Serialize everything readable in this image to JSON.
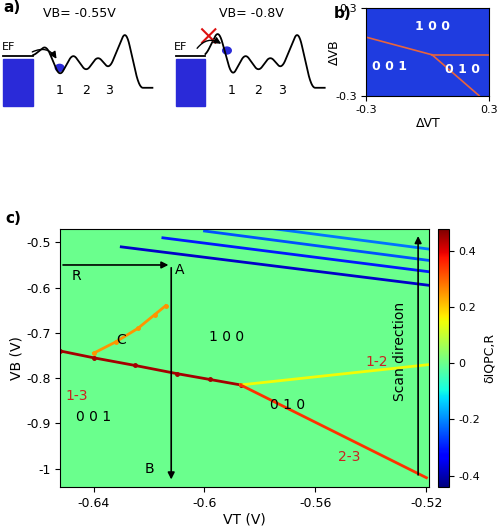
{
  "diagram_a": {
    "label": "a)",
    "panels": [
      {
        "gate": "VB= -0.55V",
        "fermi": "EF",
        "dots": [
          "1",
          "2",
          "3"
        ],
        "tunnel": true
      },
      {
        "gate": "VB= -0.8V",
        "fermi": "EF",
        "dots": [
          "1",
          "2",
          "3"
        ],
        "tunnel": false
      }
    ]
  },
  "chart_data": [
    {
      "type": "line",
      "panel_label": "b)",
      "xlabel": "ΔVT",
      "ylabel": "ΔVB",
      "xlim": [
        -0.3,
        0.3
      ],
      "ylim": [
        -0.3,
        0.3
      ],
      "xticks": [
        -0.3,
        0.3
      ],
      "yticks": [
        -0.3,
        0.3
      ],
      "color": "#1f3ce0",
      "series": [
        {
          "x": [
            0.02,
            -0.3
          ],
          "y": [
            -0.02,
            0.1
          ],
          "color": "#e8643c"
        },
        {
          "x": [
            0.02,
            0.3
          ],
          "y": [
            -0.02,
            -0.02
          ],
          "color": "#e8643c"
        },
        {
          "x": [
            0.02,
            0.25
          ],
          "y": [
            -0.02,
            -0.3
          ],
          "color": "#e8643c"
        }
      ],
      "labels": [
        {
          "text": "1 0 0",
          "x": 0.02,
          "y": 0.17
        },
        {
          "text": "0 0 1",
          "x": -0.19,
          "y": -0.1
        },
        {
          "text": "0 1 0",
          "x": 0.17,
          "y": -0.12
        }
      ]
    },
    {
      "type": "heatmap",
      "panel_label": "c)",
      "xlabel": "VT (V)",
      "ylabel": "VB (V)",
      "xlim": [
        -0.652,
        -0.519
      ],
      "ylim": [
        -1.04,
        -0.47
      ],
      "xticks": [
        -0.64,
        -0.6,
        -0.56,
        -0.52
      ],
      "yticks": [
        -0.5,
        -0.6,
        -0.7,
        -0.8,
        -0.9,
        -1
      ],
      "background_value": 0,
      "colorbar": {
        "label": "δIQPC,R",
        "lim": [
          -0.44,
          0.48
        ],
        "ticks": [
          -0.4,
          -0.2,
          0,
          0.2,
          0.4
        ]
      },
      "series": [
        {
          "x": [
            -0.652,
            -0.64,
            -0.625,
            -0.61,
            -0.598,
            -0.587
          ],
          "y": [
            -0.74,
            -0.755,
            -0.772,
            -0.79,
            -0.803,
            -0.815
          ],
          "value": 0.45,
          "marker": "o"
        },
        {
          "x": [
            -0.587,
            -0.519
          ],
          "y": [
            -0.815,
            -0.77
          ],
          "value": 0.15
        },
        {
          "x": [
            -0.587,
            -0.52
          ],
          "y": [
            -0.815,
            -1.02
          ],
          "value": 0.35
        },
        {
          "x": [
            -0.63,
            -0.519
          ],
          "y": [
            -0.51,
            -0.595
          ],
          "value": -0.38
        },
        {
          "x": [
            -0.615,
            -0.519
          ],
          "y": [
            -0.49,
            -0.565
          ],
          "value": -0.3
        },
        {
          "x": [
            -0.6,
            -0.519
          ],
          "y": [
            -0.475,
            -0.54
          ],
          "value": -0.25
        },
        {
          "x": [
            -0.575,
            -0.519
          ],
          "y": [
            -0.47,
            -0.515
          ],
          "value": -0.22
        },
        {
          "x": [
            -0.64,
            -0.632,
            -0.624,
            -0.618,
            -0.614
          ],
          "y": [
            -0.745,
            -0.72,
            -0.69,
            -0.66,
            -0.64
          ],
          "value": 0.25,
          "marker": "o"
        }
      ],
      "arrows": [
        {
          "from": [
            -0.652,
            -0.55
          ],
          "to": [
            -0.612,
            -0.55
          ]
        },
        {
          "from": [
            -0.612,
            -0.55
          ],
          "to": [
            -0.612,
            -1.03
          ]
        },
        {
          "from": [
            -0.523,
            -1.02
          ],
          "to": [
            -0.523,
            -0.48
          ]
        }
      ],
      "labels": [
        {
          "text": "R",
          "x": -0.646,
          "y": -0.575,
          "color": "black"
        },
        {
          "text": "A",
          "x": -0.609,
          "y": -0.56,
          "color": "black"
        },
        {
          "text": "B",
          "x": -0.62,
          "y": -1.0,
          "color": "black"
        },
        {
          "text": "C",
          "x": -0.63,
          "y": -0.715,
          "color": "black"
        },
        {
          "text": "1 0 0",
          "x": -0.592,
          "y": -0.71,
          "color": "black"
        },
        {
          "text": "0 1 0",
          "x": -0.57,
          "y": -0.86,
          "color": "black"
        },
        {
          "text": "0 0 1",
          "x": -0.64,
          "y": -0.885,
          "color": "black"
        },
        {
          "text": "1-3",
          "x": -0.646,
          "y": -0.84,
          "color": "#cc2020"
        },
        {
          "text": "1-2",
          "x": -0.538,
          "y": -0.765,
          "color": "#cc2020"
        },
        {
          "text": "2-3",
          "x": -0.548,
          "y": -0.975,
          "color": "#cc2020"
        }
      ],
      "scan_label": {
        "text": "Scan direction",
        "x": -0.527,
        "y": -0.74
      }
    }
  ]
}
